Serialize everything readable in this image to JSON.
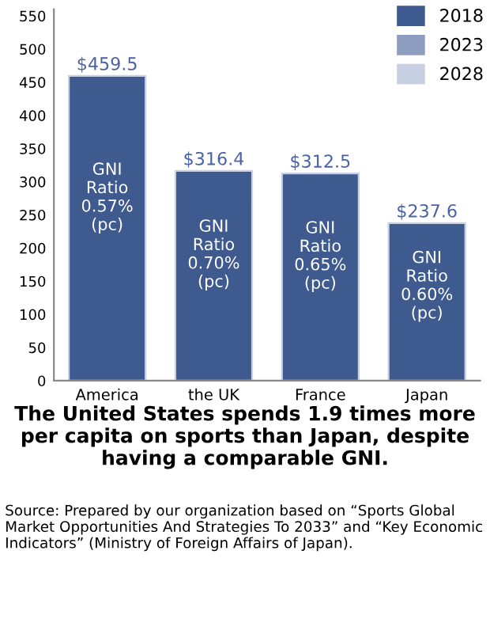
{
  "chart_data": {
    "type": "bar",
    "title": "The United States spends 1.9 times more per capita on sports than Japan, despite having a comparable GNI.",
    "categories": [
      "America",
      "the UK",
      "France",
      "Japan"
    ],
    "series": [
      {
        "name": "2018",
        "color": "#3f5a8f",
        "values": [
          459.5,
          316.4,
          312.5,
          237.6
        ],
        "value_labels": [
          "$459.5",
          "$316.4",
          "$312.5",
          "$237.6"
        ]
      },
      {
        "name": "2023",
        "color": "#8d9dc0",
        "values": [
          null,
          null,
          null,
          null
        ]
      },
      {
        "name": "2028",
        "color": "#c7cfe3",
        "values": [
          null,
          null,
          null,
          null
        ]
      }
    ],
    "ylim": [
      0,
      560
    ],
    "yticks": [
      0,
      50,
      100,
      150,
      200,
      250,
      300,
      350,
      400,
      450,
      500,
      550
    ],
    "legend": "top right",
    "grid": false,
    "annotations": [
      "GNI\nRatio\n0.57%\n(pc)",
      "GNI\nRatio\n0.70%\n(pc)",
      "GNI\nRatio\n0.65%\n(pc)",
      "GNI\nRatio\n0.60%\n(pc)",
      "Source: Prepared by our organization based on “Sports Global Market Opportunities And Strategies To 2033” and “Key Economic Indicators” (Ministry of Foreign Affairs of Japan)."
    ]
  }
}
